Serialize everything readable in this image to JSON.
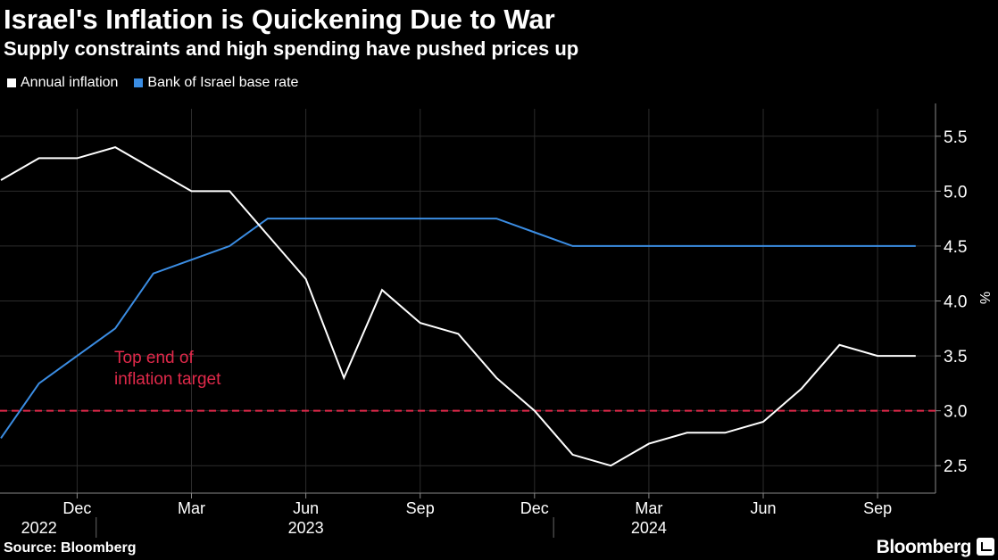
{
  "chart_data": {
    "type": "line",
    "title": "Israel's Inflation is Quickening Due to War",
    "subtitle": "Supply constraints and high spending have pushed prices up",
    "x": [
      "2022-10",
      "2022-11",
      "2022-12",
      "2023-01",
      "2023-02",
      "2023-03",
      "2023-04",
      "2023-05",
      "2023-06",
      "2023-07",
      "2023-08",
      "2023-09",
      "2023-10",
      "2023-11",
      "2023-12",
      "2024-01",
      "2024-02",
      "2024-03",
      "2024-04",
      "2024-05",
      "2024-06",
      "2024-07",
      "2024-08",
      "2024-09",
      "2024-10"
    ],
    "series": [
      {
        "name": "Annual inflation",
        "color": "#ffffff",
        "values": [
          5.1,
          5.3,
          5.3,
          5.4,
          5.2,
          5.0,
          5.0,
          4.6,
          4.2,
          3.3,
          4.1,
          3.8,
          3.7,
          3.3,
          3.0,
          2.6,
          2.5,
          2.7,
          2.8,
          2.8,
          2.9,
          3.2,
          3.6,
          3.5,
          3.5
        ]
      },
      {
        "name": "Bank of Israel base rate",
        "color": "#3b8de3",
        "values": [
          2.75,
          3.25,
          3.5,
          3.75,
          4.25,
          4.375,
          4.5,
          4.75,
          4.75,
          4.75,
          4.75,
          4.75,
          4.75,
          4.75,
          4.625,
          4.5,
          4.5,
          4.5,
          4.5,
          4.5,
          4.5,
          4.5,
          4.5,
          4.5,
          4.5
        ]
      }
    ],
    "reference_line": {
      "value": 3.0,
      "color": "#e0294a",
      "label_lines": [
        "Top end of",
        "inflation target"
      ]
    },
    "ylim": [
      2.25,
      5.75
    ],
    "yticks": [
      2.5,
      3.0,
      3.5,
      4.0,
      4.5,
      5.0,
      5.5
    ],
    "ytick_labels": [
      "2.5",
      "3.0",
      "3.5",
      "4.0",
      "4.5",
      "5.0",
      "5.5"
    ],
    "ylabel": "%",
    "xtick_months": [
      {
        "x": "2022-12",
        "label": "Dec"
      },
      {
        "x": "2023-03",
        "label": "Mar"
      },
      {
        "x": "2023-06",
        "label": "Jun"
      },
      {
        "x": "2023-09",
        "label": "Sep"
      },
      {
        "x": "2023-12",
        "label": "Dec"
      },
      {
        "x": "2024-03",
        "label": "Mar"
      },
      {
        "x": "2024-06",
        "label": "Jun"
      },
      {
        "x": "2024-09",
        "label": "Sep"
      }
    ],
    "year_labels": [
      {
        "x": "2022-11",
        "label": "2022"
      },
      {
        "x": "2023-06",
        "label": "2023"
      },
      {
        "x": "2024-03",
        "label": "2024"
      }
    ],
    "year_dividers": [
      "2023-01",
      "2024-01"
    ],
    "grid": true,
    "legend_position": "top-left"
  },
  "footer": {
    "source": "Source: Bloomberg",
    "logo": "Bloomberg"
  }
}
